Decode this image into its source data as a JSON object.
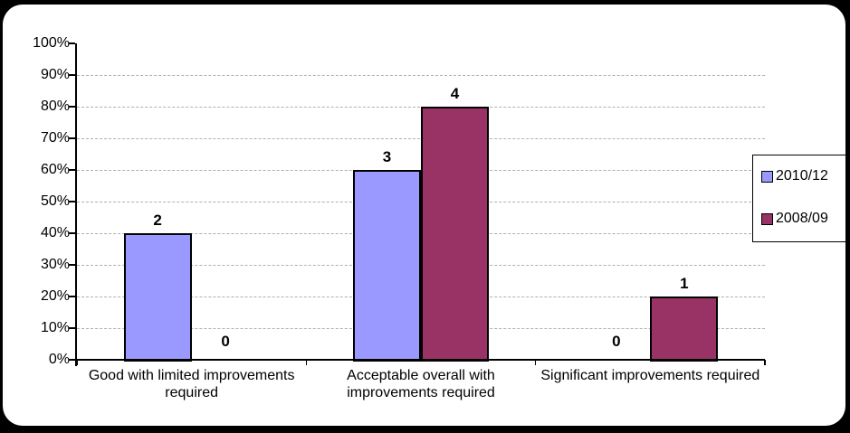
{
  "frame": {
    "background_color": "#000000",
    "panel_color": "#ffffff"
  },
  "chart_data": {
    "type": "bar",
    "title": "",
    "xlabel": "",
    "ylabel": "",
    "categories": [
      "Good with limited improvements required",
      "Acceptable overall with improvements required",
      "Significant improvements required"
    ],
    "series": [
      {
        "name": "2010/12",
        "color": "#9999FF",
        "values_pct": [
          40,
          60,
          0
        ],
        "data_labels": [
          "2",
          "3",
          "0"
        ]
      },
      {
        "name": "2008/09",
        "color": "#993366",
        "values_pct": [
          0,
          80,
          20
        ],
        "data_labels": [
          "0",
          "4",
          "1"
        ]
      }
    ],
    "ylim": [
      0,
      100
    ],
    "ytick_labels": [
      "0%",
      "10%",
      "20%",
      "30%",
      "40%",
      "50%",
      "60%",
      "70%",
      "80%",
      "90%",
      "100%"
    ],
    "grid": "horizontal dashed at 10%-90%",
    "gridline_color": "#b0b0b0",
    "legend_position": "right",
    "bar_border_color": "#000000"
  }
}
